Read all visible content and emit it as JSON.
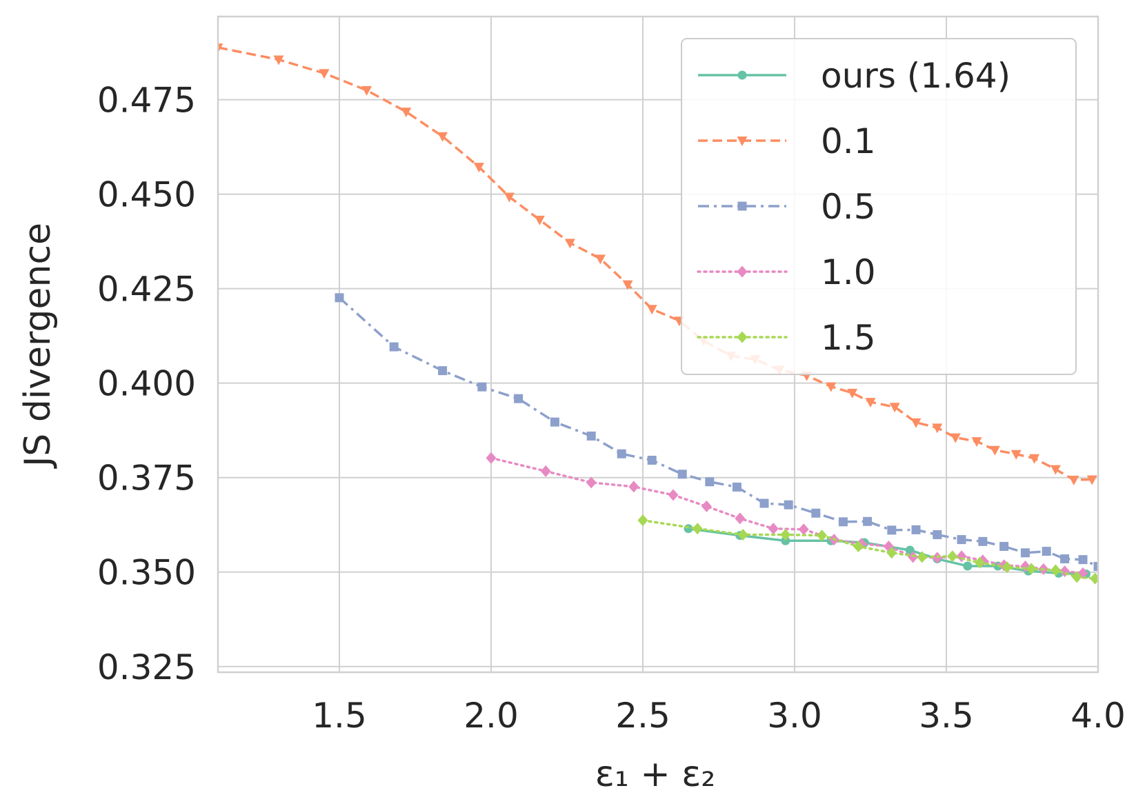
{
  "chart_data": {
    "type": "line",
    "xlabel": "ε₁ + ε₂",
    "ylabel": "JS divergence",
    "xlim": [
      1.1,
      4.0
    ],
    "ylim": [
      0.3235,
      0.497
    ],
    "xticks": [
      "1.5",
      "2.0",
      "2.5",
      "3.0",
      "3.5",
      "4.0"
    ],
    "yticks": [
      "0.325",
      "0.350",
      "0.375",
      "0.400",
      "0.425",
      "0.450",
      "0.475"
    ],
    "grid": true,
    "legend_position": "top-right",
    "series": [
      {
        "name": "ours (1.64)",
        "color": "#66c2a5",
        "dash": "solid",
        "marker": "circle",
        "x": [
          2.65,
          2.82,
          2.97,
          3.12,
          3.23,
          3.38,
          3.47,
          3.57,
          3.67,
          3.77,
          3.87,
          3.96
        ],
        "y": [
          0.3615,
          0.3597,
          0.3583,
          0.3583,
          0.3578,
          0.3558,
          0.3535,
          0.3516,
          0.3516,
          0.3503,
          0.3497,
          0.3495
        ]
      },
      {
        "name": "0.1",
        "color": "#fc8d62",
        "dash": "dashed",
        "marker": "triangle-down",
        "x": [
          1.1,
          1.3,
          1.45,
          1.59,
          1.72,
          1.84,
          1.96,
          2.06,
          2.16,
          2.26,
          2.36,
          2.45,
          2.53,
          2.62,
          2.7,
          2.79,
          2.87,
          2.95,
          3.04,
          3.12,
          3.19,
          3.25,
          3.33,
          3.4,
          3.47,
          3.53,
          3.6,
          3.66,
          3.73,
          3.79,
          3.86,
          3.92,
          3.98
        ],
        "y": [
          0.4888,
          0.4856,
          0.482,
          0.4775,
          0.4718,
          0.4653,
          0.4572,
          0.4493,
          0.4432,
          0.4371,
          0.4329,
          0.4261,
          0.4196,
          0.4165,
          0.4112,
          0.4072,
          0.4063,
          0.4035,
          0.402,
          0.3991,
          0.3974,
          0.395,
          0.3937,
          0.3896,
          0.3882,
          0.3856,
          0.3846,
          0.3823,
          0.3812,
          0.3801,
          0.3772,
          0.3744,
          0.3745
        ]
      },
      {
        "name": "0.5",
        "color": "#8da0cb",
        "dash": "dashdot",
        "marker": "square",
        "x": [
          1.5,
          1.68,
          1.84,
          1.97,
          2.09,
          2.21,
          2.33,
          2.43,
          2.53,
          2.63,
          2.72,
          2.81,
          2.9,
          2.98,
          3.07,
          3.16,
          3.24,
          3.32,
          3.4,
          3.47,
          3.55,
          3.62,
          3.69,
          3.76,
          3.83,
          3.89,
          3.95,
          4.0
        ],
        "y": [
          0.4226,
          0.4096,
          0.4033,
          0.399,
          0.3959,
          0.3897,
          0.386,
          0.3813,
          0.3796,
          0.3759,
          0.3739,
          0.3725,
          0.3682,
          0.3678,
          0.3656,
          0.3633,
          0.3634,
          0.3611,
          0.3612,
          0.3599,
          0.3586,
          0.3581,
          0.3568,
          0.3551,
          0.3555,
          0.3535,
          0.3533,
          0.3515
        ]
      },
      {
        "name": "1.0",
        "color": "#e78ac3",
        "dash": "dotted",
        "marker": "diamond",
        "x": [
          2.0,
          2.18,
          2.33,
          2.47,
          2.6,
          2.71,
          2.82,
          2.93,
          3.03,
          3.13,
          3.22,
          3.31,
          3.39,
          3.47,
          3.55,
          3.62,
          3.69,
          3.76,
          3.82,
          3.89,
          3.95
        ],
        "y": [
          0.3802,
          0.3767,
          0.3737,
          0.3726,
          0.3704,
          0.3674,
          0.3642,
          0.3615,
          0.3613,
          0.3586,
          0.3575,
          0.3568,
          0.354,
          0.3538,
          0.3542,
          0.3531,
          0.3518,
          0.3515,
          0.3508,
          0.3502,
          0.3497
        ]
      },
      {
        "name": "1.5",
        "color": "#a6d854",
        "dash": "dotted",
        "marker": "diamond",
        "x": [
          2.5,
          2.68,
          2.83,
          2.97,
          3.09,
          3.21,
          3.32,
          3.42,
          3.52,
          3.61,
          3.7,
          3.78,
          3.86,
          3.93,
          3.99
        ],
        "y": [
          0.3637,
          0.3615,
          0.3599,
          0.3599,
          0.3597,
          0.3568,
          0.3551,
          0.354,
          0.3542,
          0.3525,
          0.3513,
          0.3509,
          0.3505,
          0.3487,
          0.3483
        ]
      }
    ]
  }
}
